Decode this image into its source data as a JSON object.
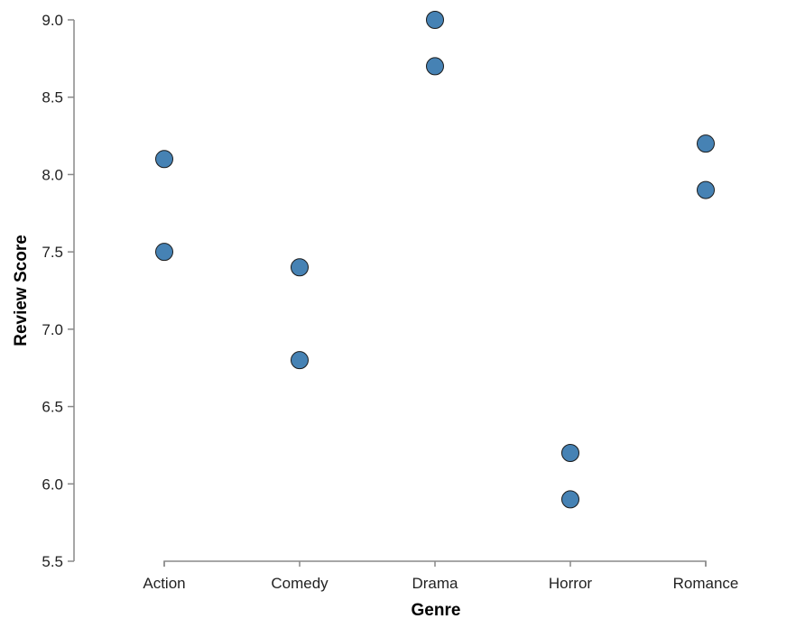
{
  "chart_data": {
    "type": "scatter",
    "title": "",
    "xlabel": "Genre",
    "ylabel": "Review Score",
    "categories": [
      "Action",
      "Comedy",
      "Drama",
      "Horror",
      "Romance"
    ],
    "points": [
      {
        "x": "Action",
        "y": 8.1
      },
      {
        "x": "Action",
        "y": 7.5
      },
      {
        "x": "Comedy",
        "y": 7.4
      },
      {
        "x": "Comedy",
        "y": 6.8
      },
      {
        "x": "Drama",
        "y": 9.0
      },
      {
        "x": "Drama",
        "y": 8.7
      },
      {
        "x": "Horror",
        "y": 6.2
      },
      {
        "x": "Horror",
        "y": 5.9
      },
      {
        "x": "Romance",
        "y": 8.2
      },
      {
        "x": "Romance",
        "y": 7.9
      }
    ],
    "ylim": [
      5.5,
      9.0
    ],
    "yticks": [
      "5.5",
      "6.0",
      "6.5",
      "7.0",
      "7.5",
      "8.0",
      "8.5",
      "9.0"
    ],
    "grid": false,
    "colors": {
      "point": "#4682b4",
      "point_stroke": "#1a1a1a",
      "axis": "#888888"
    }
  }
}
